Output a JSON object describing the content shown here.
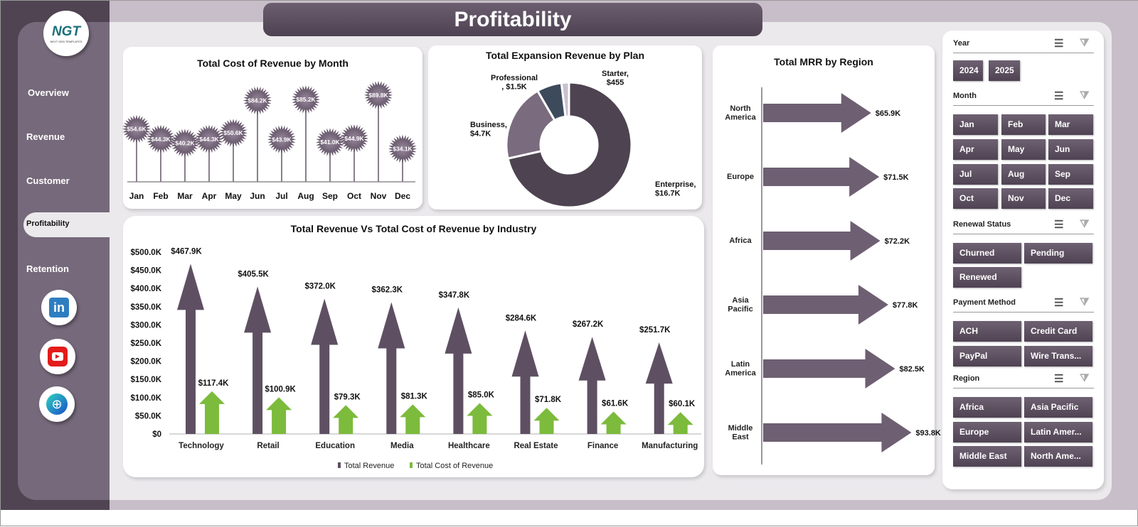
{
  "title": "Profitability",
  "logo": {
    "text": "NGT",
    "sub": "NEXT GEN TEMPLATES"
  },
  "nav": [
    {
      "label": "Overview"
    },
    {
      "label": "Revenue"
    },
    {
      "label": "Customer"
    },
    {
      "label": "Profitability",
      "active": true
    },
    {
      "label": "Retention"
    }
  ],
  "social": [
    "linkedin-icon",
    "youtube-icon",
    "globe-icon"
  ],
  "chart_data": [
    {
      "type": "bar",
      "title": "Total Cost of Revenue  by Month",
      "categories": [
        "Jan",
        "Feb",
        "Mar",
        "Apr",
        "May",
        "Jun",
        "Jul",
        "Aug",
        "Sep",
        "Oct",
        "Nov",
        "Dec"
      ],
      "values": [
        54.6,
        44.3,
        40.2,
        44.3,
        50.6,
        84.2,
        43.9,
        85.2,
        41.0,
        44.9,
        89.8,
        34.1
      ],
      "labels": [
        "$54.6K",
        "$44.3K",
        "$40.2K",
        "$44.3K",
        "$50.6K",
        "$84.2K",
        "$43.9K",
        "$85.2K",
        "$41.0K",
        "$44.9K",
        "$89.8K",
        "$34.1K"
      ],
      "unit": "$K",
      "color": "#6e5f72"
    },
    {
      "type": "pie",
      "title": "Total Expansion  Revenue  by Plan",
      "categories": [
        "Enterprise",
        "Business",
        "Professional",
        "Starter"
      ],
      "values": [
        16700,
        4700,
        1500,
        455
      ],
      "labels": [
        "Enterprise,\n$16.7K",
        "Business,\n$4.7K",
        "Professional\n, $1.5K",
        "Starter,\n$455"
      ],
      "colors": [
        "#4e4350",
        "#7a6c7e",
        "#3d4a5c",
        "#c9c1cd"
      ]
    },
    {
      "type": "bar",
      "title": "Total MRR by Region",
      "categories": [
        "North\nAmerica",
        "Europe",
        "Africa",
        "Asia\nPacific",
        "Latin\nAmerica",
        "Middle\nEast"
      ],
      "values": [
        65.9,
        71.5,
        72.2,
        77.8,
        82.5,
        93.8
      ],
      "labels": [
        "$65.9K",
        "$71.5K",
        "$72.2K",
        "$77.8K",
        "$82.5K",
        "$93.8K"
      ],
      "unit": "$K",
      "orientation": "horizontal",
      "color": "#6e5f72"
    },
    {
      "type": "bar",
      "title": "Total Revenue Vs Total Cost of Revenue  by Industry",
      "categories": [
        "Technology",
        "Retail",
        "Education",
        "Media",
        "Healthcare",
        "Real Estate",
        "Finance",
        "Manufacturing"
      ],
      "ylim": [
        0,
        500
      ],
      "yticks": [
        "$0",
        "$50.0K",
        "$100.0K",
        "$150.0K",
        "$200.0K",
        "$250.0K",
        "$300.0K",
        "$350.0K",
        "$400.0K",
        "$450.0K",
        "$500.0K"
      ],
      "legend": "bottom",
      "series": [
        {
          "name": "Total Revenue",
          "color": "#5e5062",
          "values": [
            467.9,
            405.5,
            372.0,
            362.3,
            347.8,
            284.6,
            267.2,
            251.7
          ],
          "labels": [
            "$467.9K",
            "$405.5K",
            "$372.0K",
            "$362.3K",
            "$347.8K",
            "$284.6K",
            "$267.2K",
            "$251.7K"
          ]
        },
        {
          "name": "Total Cost of Revenue",
          "color": "#7cbb3c",
          "values": [
            117.4,
            100.9,
            79.3,
            81.3,
            85.0,
            71.8,
            61.6,
            60.1
          ],
          "labels": [
            "$117.4K",
            "$100.9K",
            "$79.3K",
            "$81.3K",
            "$85.0K",
            "$71.8K",
            "$61.6K",
            "$60.1K"
          ]
        }
      ]
    }
  ],
  "slicers": [
    {
      "title": "Year",
      "items": [
        "2024",
        "2025"
      ]
    },
    {
      "title": "Month",
      "items": [
        "Jan",
        "Feb",
        "Mar",
        "Apr",
        "May",
        "Jun",
        "Jul",
        "Aug",
        "Sep",
        "Oct",
        "Nov",
        "Dec"
      ]
    },
    {
      "title": "Renewal Status",
      "items": [
        "Churned",
        "Pending",
        "Renewed"
      ]
    },
    {
      "title": "Payment Method",
      "items": [
        "ACH",
        "Credit Card",
        "PayPal",
        "Wire Trans..."
      ]
    },
    {
      "title": "Region",
      "items": [
        "Africa",
        "Asia Pacific",
        "Europe",
        "Latin Amer...",
        "Middle East",
        "North Ame..."
      ]
    }
  ],
  "slicer_icons": {
    "multiselect": "☰",
    "clear": "⧩"
  }
}
